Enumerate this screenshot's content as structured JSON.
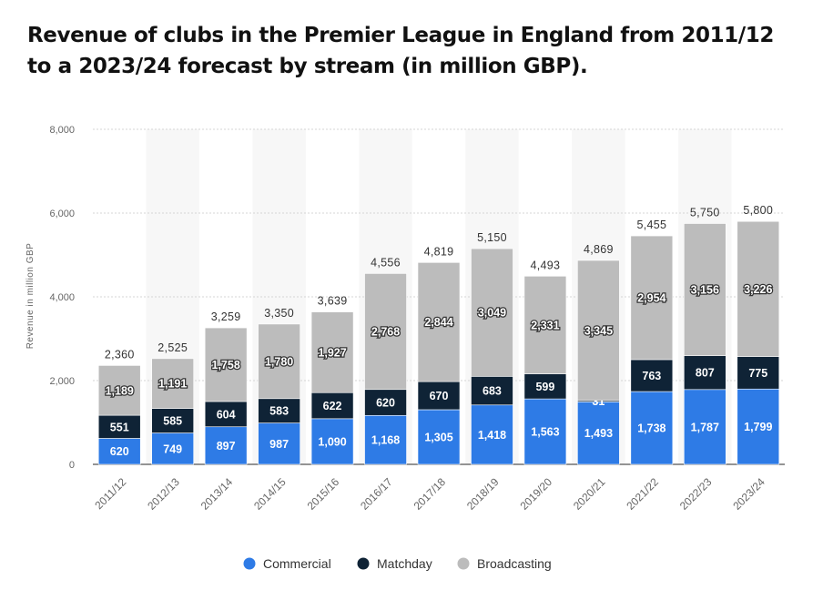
{
  "chart_data": {
    "type": "bar",
    "stacked": true,
    "title": "Revenue of clubs in the Premier League in England from 2011/12 to a 2023/24 forecast by stream (in million GBP).",
    "ylabel": "Revenue in million GBP",
    "ylim": [
      0,
      8000
    ],
    "yticks": [
      "0",
      "2,000",
      "4,000",
      "6,000",
      "8,000"
    ],
    "ytick_values": [
      0,
      2000,
      4000,
      6000,
      8000
    ],
    "grid": true,
    "legend_position": "bottom",
    "categories": [
      "2011/12",
      "2012/13",
      "2013/14",
      "2014/15",
      "2015/16",
      "2016/17",
      "2017/18",
      "2018/19",
      "2019/20",
      "2020/21",
      "2021/22",
      "2022/23",
      "2023/24"
    ],
    "series": [
      {
        "name": "Commercial",
        "color": "#2e7be6",
        "values": [
          620,
          749,
          897,
          987,
          1090,
          1168,
          1305,
          1418,
          1563,
          1493,
          1738,
          1787,
          1799
        ],
        "labels": [
          "620",
          "749",
          "897",
          "987",
          "1,090",
          "1,168",
          "1,305",
          "1,418",
          "1,563",
          "1,493",
          "1,738",
          "1,787",
          "1,799"
        ]
      },
      {
        "name": "Matchday",
        "color": "#0f2336",
        "values": [
          551,
          585,
          604,
          583,
          622,
          620,
          670,
          683,
          599,
          31,
          763,
          807,
          775
        ],
        "labels": [
          "551",
          "585",
          "604",
          "583",
          "622",
          "620",
          "670",
          "683",
          "599",
          "31",
          "763",
          "807",
          "775"
        ]
      },
      {
        "name": "Broadcasting",
        "color": "#bcbcbc",
        "values": [
          1189,
          1191,
          1758,
          1780,
          1927,
          2768,
          2844,
          3049,
          2331,
          3345,
          2954,
          3156,
          3226
        ],
        "labels": [
          "1,189",
          "1,191",
          "1,758",
          "1,780",
          "1,927",
          "2,768",
          "2,844",
          "3,049",
          "2,331",
          "3,345",
          "2,954",
          "3,156",
          "3,226"
        ]
      }
    ],
    "totals": [
      2360,
      2525,
      3259,
      3350,
      3639,
      4556,
      4819,
      5150,
      4493,
      4869,
      5455,
      5750,
      5800
    ],
    "total_labels": [
      "2,360",
      "2,525",
      "3,259",
      "3,350",
      "3,639",
      "4,556",
      "4,819",
      "5,150",
      "4,493",
      "4,869",
      "5,455",
      "5,750",
      "5,800"
    ]
  }
}
